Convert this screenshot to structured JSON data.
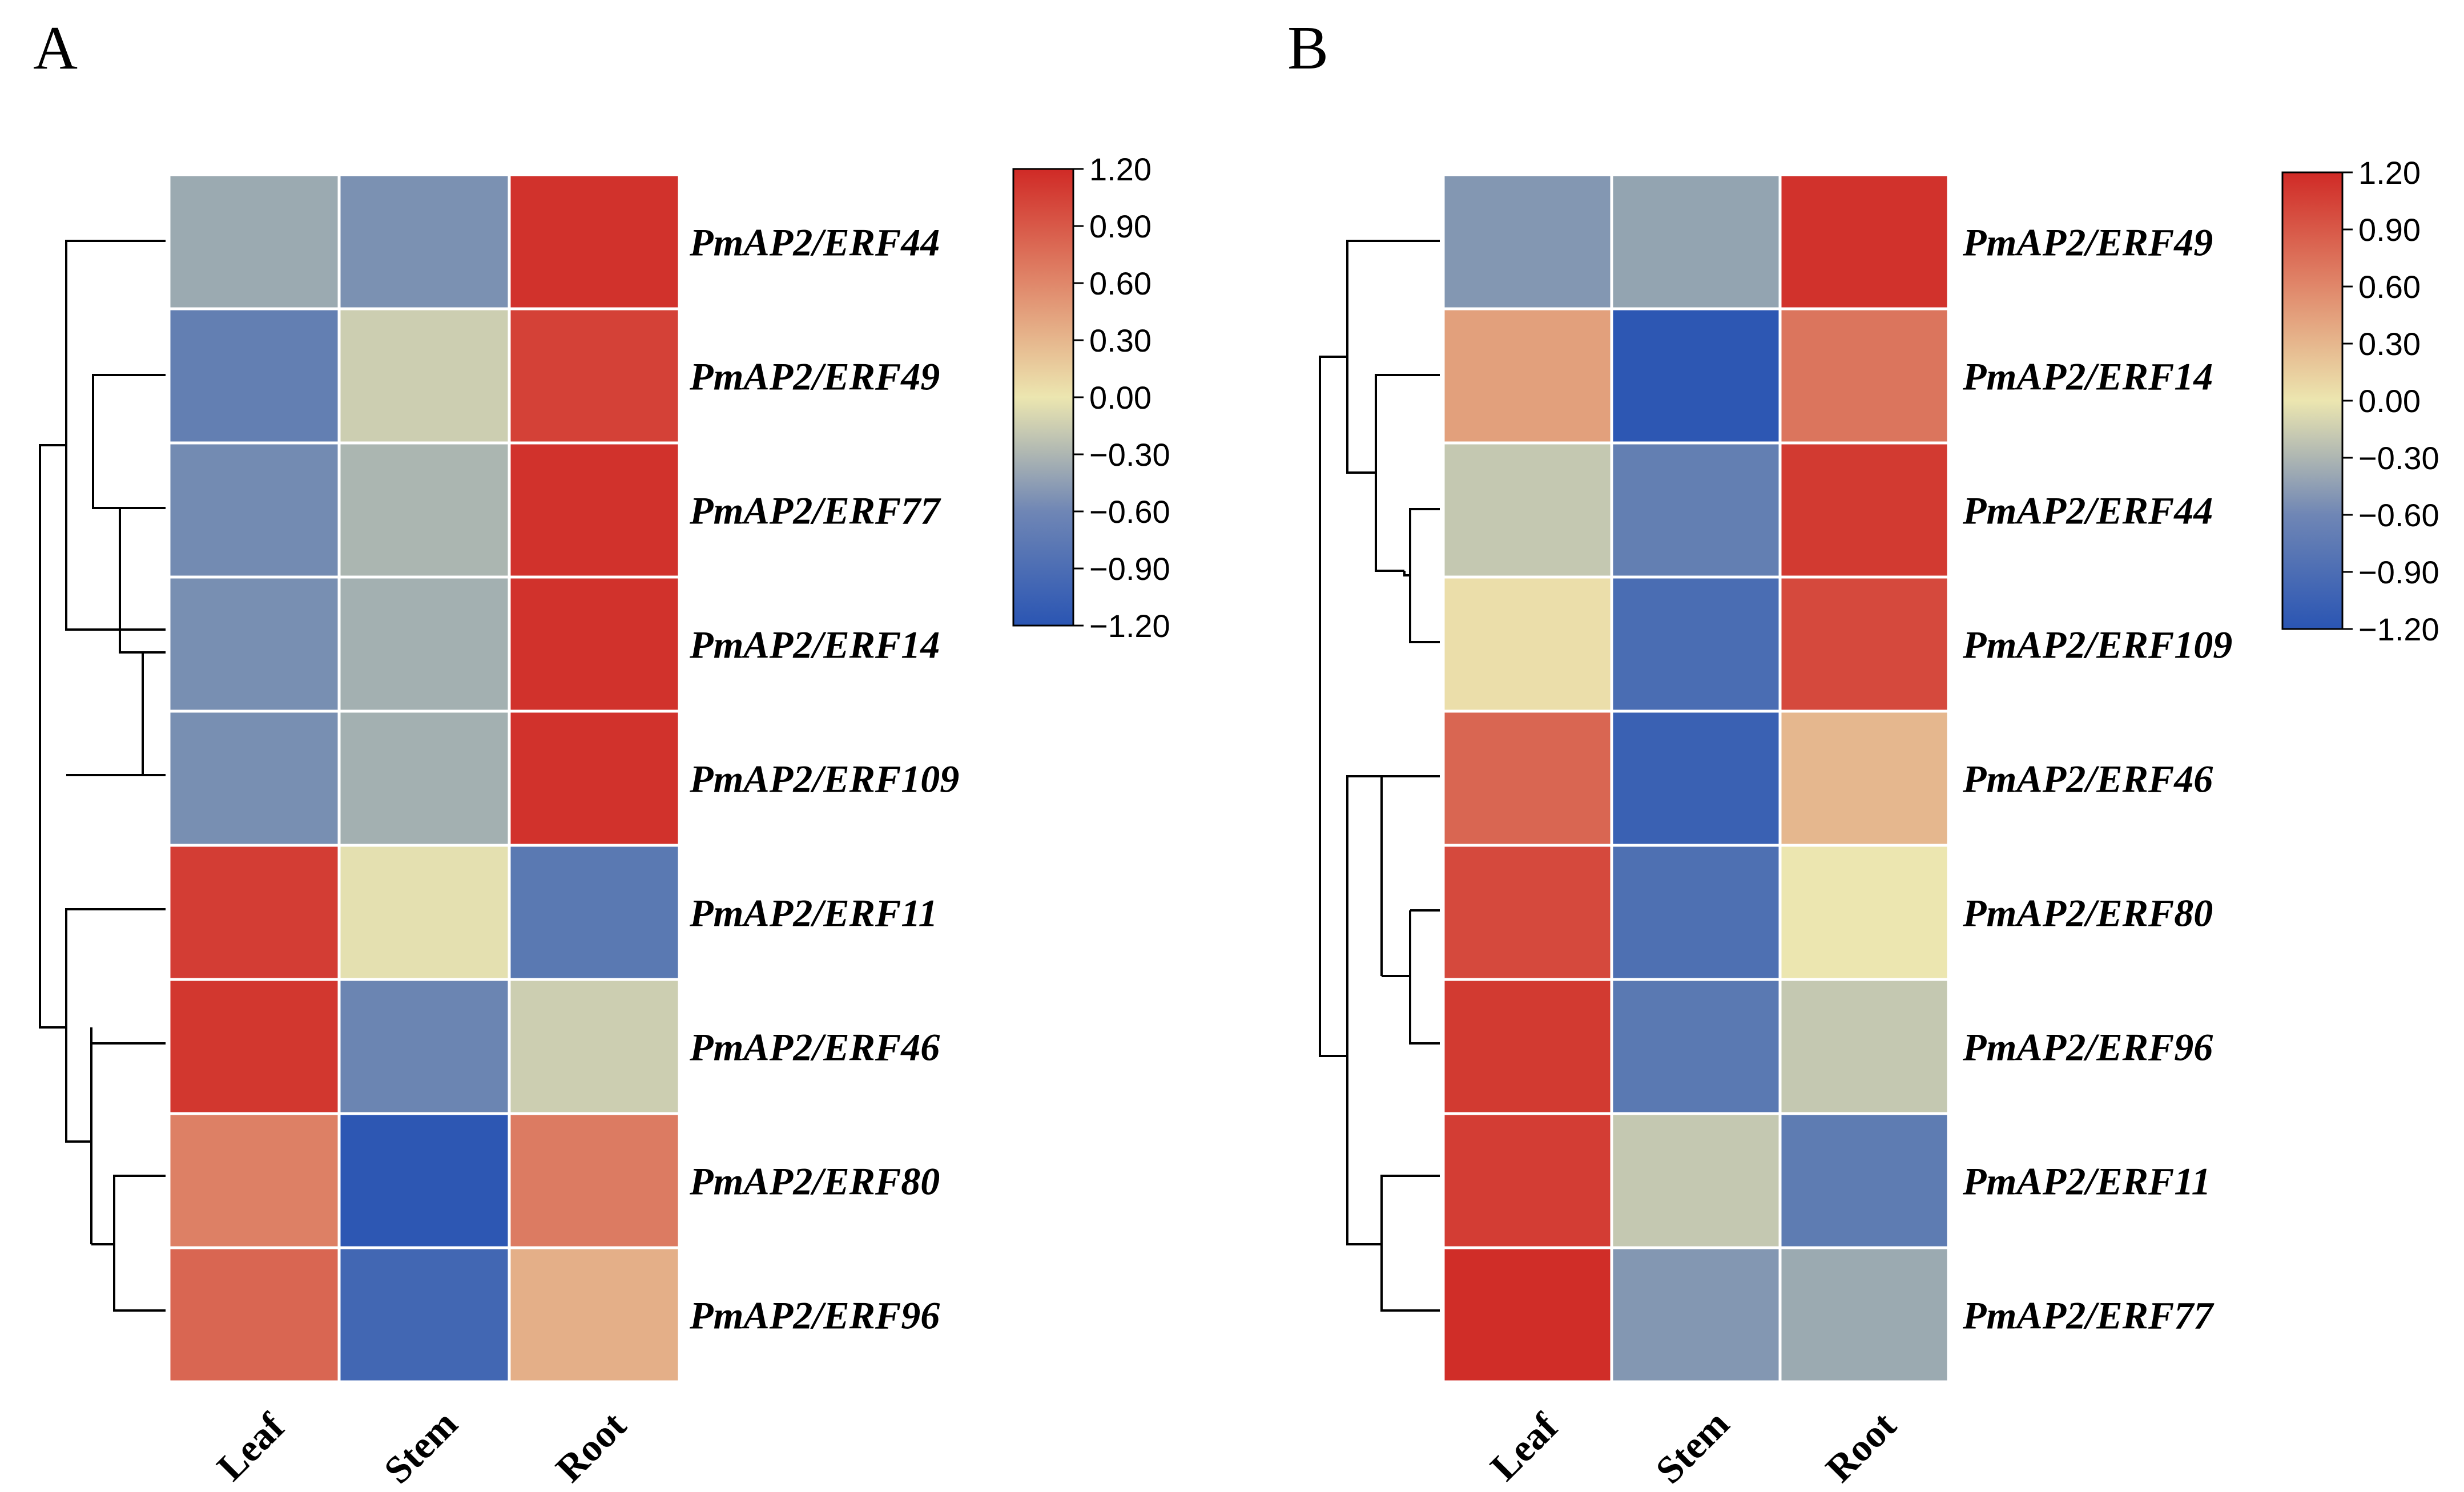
{
  "chart_data": [
    {
      "type": "heatmap",
      "panel_label": "A",
      "columns": [
        "Leaf",
        "Stem",
        "Root"
      ],
      "rows": [
        "PmAP2/ERF44",
        "PmAP2/ERF49",
        "PmAP2/ERF77",
        "PmAP2/ERF14",
        "PmAP2/ERF109",
        "PmAP2/ERF11",
        "PmAP2/ERF46",
        "PmAP2/ERF80",
        "PmAP2/ERF96"
      ],
      "values": [
        [
          -0.5,
          -0.7,
          1.15
        ],
        [
          -0.85,
          -0.2,
          1.05
        ],
        [
          -0.75,
          -0.4,
          1.15
        ],
        [
          -0.72,
          -0.45,
          1.15
        ],
        [
          -0.72,
          -0.45,
          1.15
        ],
        [
          1.08,
          -0.05,
          -0.9
        ],
        [
          1.12,
          -0.8,
          -0.2
        ],
        [
          0.65,
          -1.18,
          0.68
        ],
        [
          0.82,
          -1.05,
          0.35
        ]
      ],
      "color_scale": {
        "min": -1.2,
        "max": 1.2,
        "low": "#2a55b3",
        "mid": "#ece6b0",
        "high": "#d02a26"
      },
      "colorbar_ticks": [
        "1.20",
        "0.90",
        "0.60",
        "0.30",
        "0.00",
        "−0.30",
        "−0.60",
        "−0.90",
        "−1.20"
      ],
      "colorbar_tick_values": [
        1.2,
        0.9,
        0.6,
        0.3,
        0.0,
        -0.3,
        -0.6,
        -0.9,
        -1.2
      ],
      "dendrogram_leaf_order": [
        0,
        1,
        2,
        3,
        4,
        5,
        6,
        7,
        8
      ]
    },
    {
      "type": "heatmap",
      "panel_label": "B",
      "columns": [
        "Leaf",
        "Stem",
        "Root"
      ],
      "rows": [
        "PmAP2/ERF49",
        "PmAP2/ERF14",
        "PmAP2/ERF44",
        "PmAP2/ERF109",
        "PmAP2/ERF46",
        "PmAP2/ERF80",
        "PmAP2/ERF96",
        "PmAP2/ERF11",
        "PmAP2/ERF77"
      ],
      "values": [
        [
          -0.65,
          -0.55,
          1.15
        ],
        [
          0.45,
          -1.18,
          0.72
        ],
        [
          -0.25,
          -0.85,
          1.1
        ],
        [
          0.05,
          -1.0,
          1.0
        ],
        [
          0.82,
          -1.1,
          0.3
        ],
        [
          1.0,
          -0.98,
          0.0
        ],
        [
          1.1,
          -0.9,
          -0.25
        ],
        [
          1.08,
          -0.25,
          -0.88
        ],
        [
          1.18,
          -0.65,
          -0.5
        ]
      ],
      "color_scale": {
        "min": -1.2,
        "max": 1.2,
        "low": "#2a55b3",
        "mid": "#ece6b0",
        "high": "#d02a26"
      },
      "colorbar_ticks": [
        "1.20",
        "0.90",
        "0.60",
        "0.30",
        "0.00",
        "−0.30",
        "−0.60",
        "−0.90",
        "−1.20"
      ],
      "colorbar_tick_values": [
        1.2,
        0.9,
        0.6,
        0.3,
        0.0,
        -0.3,
        -0.6,
        -0.9,
        -1.2
      ],
      "dendrogram_leaf_order": [
        0,
        1,
        2,
        3,
        4,
        5,
        6,
        7,
        8
      ]
    }
  ]
}
